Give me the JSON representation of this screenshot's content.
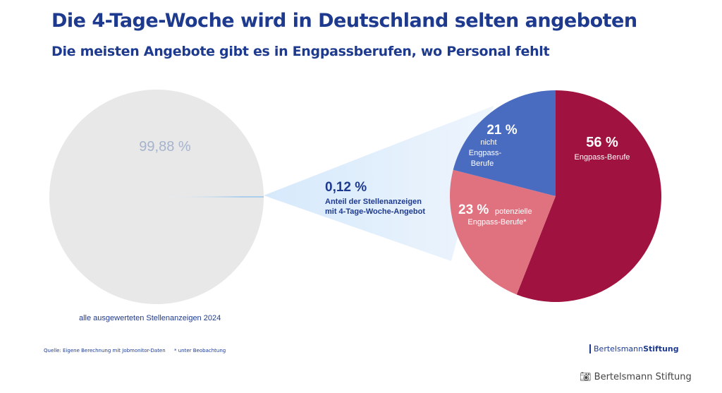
{
  "title": "Die 4-Tage-Woche wird in Deutschland selten angeboten",
  "subtitle": "Die meisten Angebote gibt es in Engpassberufen, wo Personal fehlt",
  "chart_data": [
    {
      "type": "pie",
      "caption": "alle ausgewerteten Stellenanzeigen 2024",
      "slices": [
        {
          "label": "99,88 %",
          "value": 99.88,
          "color": "#e8e8e8"
        },
        {
          "label": "0,12 %",
          "value": 0.12,
          "color": "#6fb5f0",
          "description_lines": [
            "Anteil der Stellenanzeigen",
            "mit 4-Tage-Woche-Angebot"
          ]
        }
      ]
    },
    {
      "type": "pie",
      "slices": [
        {
          "label": "56 %",
          "value": 56,
          "text": [
            "Engpass-Berufe"
          ],
          "color": "#a0123f"
        },
        {
          "label": "23 %",
          "value": 23,
          "text": [
            "potenzielle",
            "Engpass-Berufe*"
          ],
          "color": "#e0717f"
        },
        {
          "label": "21 %",
          "value": 21,
          "text": [
            "nicht",
            "Engpass-",
            "Berufe"
          ],
          "color": "#4a6cc0"
        }
      ]
    }
  ],
  "footer": {
    "source": "Quelle: Eigene Berechnung mit Jobmonitor-Daten",
    "note": "* unter Beobachtung",
    "logo_a": "Bertelsmann",
    "logo_b": "Stiftung",
    "credit": "Bertelsmann Stiftung",
    "credit_icon": "camera-icon"
  }
}
